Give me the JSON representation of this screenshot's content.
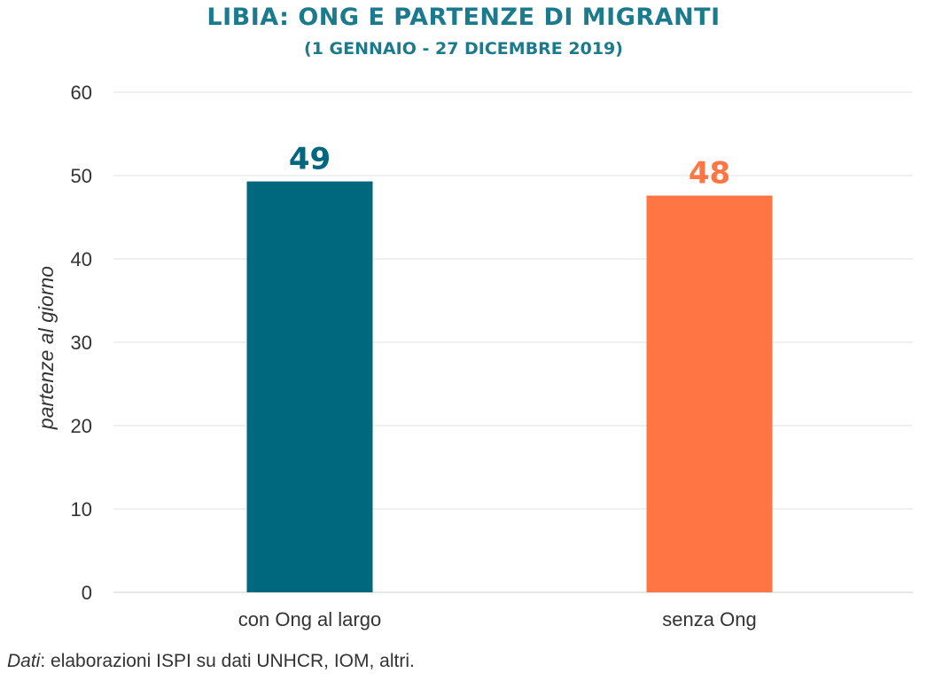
{
  "chart_data": {
    "type": "bar",
    "title": "LIBIA: ONG E PARTENZE DI MIGRANTI",
    "subtitle": "(1 GENNAIO - 27 DICEMBRE 2019)",
    "categories": [
      "con Ong al largo",
      "senza Ong"
    ],
    "values": [
      49.3,
      47.6
    ],
    "data_labels": [
      "49",
      "48"
    ],
    "colors": [
      "#00687E",
      "#FF7543"
    ],
    "xlabel": "",
    "ylabel": "partenze al giorno",
    "ylim": [
      0,
      60
    ],
    "yticks": [
      0,
      10,
      20,
      30,
      40,
      50,
      60
    ],
    "grid": true,
    "legend": "none"
  },
  "title_color": "#1B7A8C",
  "source": {
    "label": "Dati",
    "text": ": elaborazioni ISPI su dati UNHCR, IOM, altri."
  }
}
